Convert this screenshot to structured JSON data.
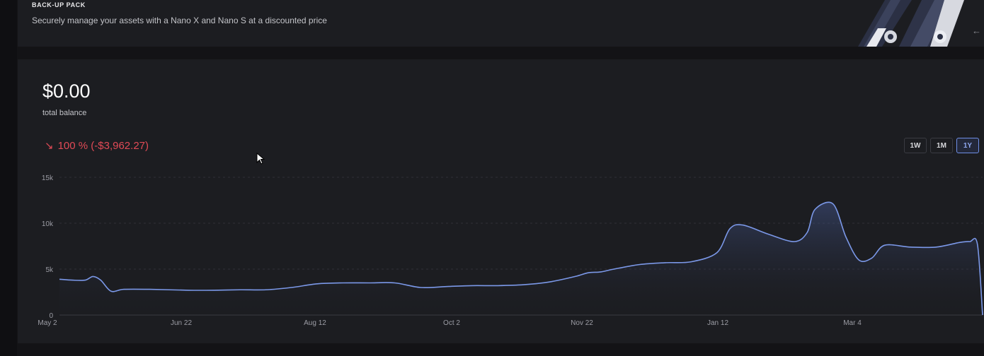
{
  "banner": {
    "title": "BACK-UP PACK",
    "description": "Securely manage your assets with a Nano X and Nano S at a discounted price",
    "arrow_icon": "arrow-left-icon"
  },
  "portfolio": {
    "balance": "$0.00",
    "balance_label": "total balance",
    "change_icon": "↘",
    "change_text": "100 % (-$3,962.27)",
    "change_color": "#e14a56"
  },
  "range_buttons": [
    {
      "label": "1W",
      "active": false
    },
    {
      "label": "1M",
      "active": false
    },
    {
      "label": "1Y",
      "active": true
    }
  ],
  "chart_data": {
    "type": "area",
    "line_color": "#7b98e8",
    "yticks": [
      {
        "value": 0,
        "label": "0"
      },
      {
        "value": 5000,
        "label": "5k"
      },
      {
        "value": 10000,
        "label": "10k"
      },
      {
        "value": 15000,
        "label": "15k"
      }
    ],
    "ylim": [
      0,
      15000
    ],
    "xticks": [
      {
        "x": 0,
        "label": "May 2"
      },
      {
        "x": 51,
        "label": "Jun 22"
      },
      {
        "x": 102,
        "label": "Aug 12"
      },
      {
        "x": 153,
        "label": "Oct 2"
      },
      {
        "x": 204,
        "label": "Nov 22"
      },
      {
        "x": 255,
        "label": "Jan 12"
      },
      {
        "x": 306,
        "label": "Mar 4"
      }
    ],
    "xlim": [
      0,
      358
    ],
    "x": [
      0,
      5,
      10,
      13,
      16,
      20,
      25,
      35,
      50,
      60,
      70,
      80,
      90,
      100,
      110,
      120,
      130,
      140,
      150,
      160,
      170,
      180,
      190,
      200,
      205,
      210,
      215,
      225,
      235,
      245,
      255,
      260,
      265,
      275,
      285,
      290,
      293,
      300,
      305,
      310,
      315,
      320,
      330,
      340,
      349,
      353,
      356,
      358
    ],
    "values": [
      3900,
      3800,
      3800,
      4200,
      3800,
      2600,
      2800,
      2800,
      2700,
      2700,
      2750,
      2750,
      3000,
      3400,
      3500,
      3500,
      3500,
      3000,
      3100,
      3200,
      3200,
      3300,
      3600,
      4200,
      4600,
      4700,
      5000,
      5500,
      5700,
      5800,
      6800,
      9400,
      9800,
      8800,
      8000,
      9000,
      11500,
      12100,
      8500,
      6000,
      6200,
      7600,
      7400,
      7400,
      7900,
      8000,
      7700,
      0
    ]
  }
}
